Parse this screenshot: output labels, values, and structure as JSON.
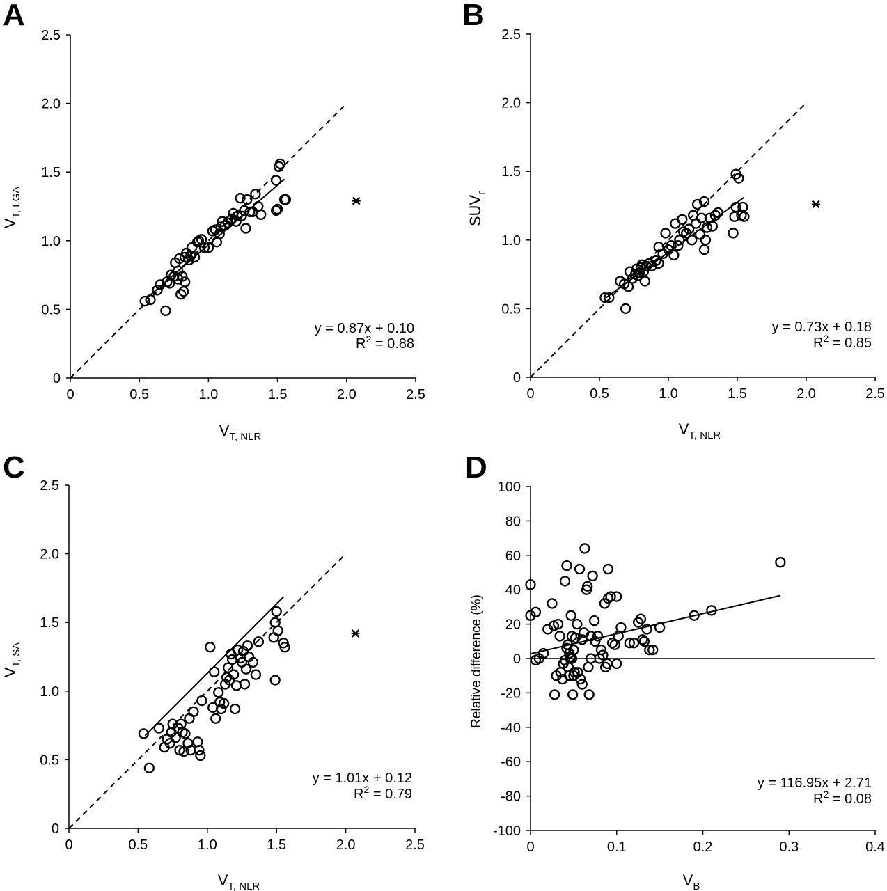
{
  "chart_data": [
    {
      "id": "A",
      "type": "scatter",
      "panel_label": "A",
      "xlabel": {
        "main": "V",
        "sub": "T, NLR"
      },
      "ylabel": {
        "main": "V",
        "sub": "T, LGA"
      },
      "xlim": [
        0,
        2.5
      ],
      "ylim": [
        0,
        2.5
      ],
      "xticks": [
        "0",
        "0.5",
        "1.0",
        "1.5",
        "2.0",
        "2.5"
      ],
      "yticks": [
        "0",
        "0.5",
        "1.0",
        "1.5",
        "2.0",
        "2.5"
      ],
      "xtick_values": [
        0,
        0.5,
        1.0,
        1.5,
        2.0,
        2.5
      ],
      "ytick_values": [
        0,
        0.5,
        1.0,
        1.5,
        2.0,
        2.5
      ],
      "identity_line": {
        "from": [
          0,
          0
        ],
        "to": [
          2.0,
          2.0
        ],
        "style": "dashed"
      },
      "fit": {
        "slope": 0.87,
        "intercept": 0.1,
        "x_range": [
          0.55,
          1.55
        ],
        "eq_text": "y = 0.87x + 0.10",
        "r2_value": "= 0.88"
      },
      "outlier": {
        "x": 2.07,
        "y": 1.29
      },
      "points": [
        [
          0.54,
          0.56
        ],
        [
          0.58,
          0.57
        ],
        [
          0.63,
          0.64
        ],
        [
          0.65,
          0.68
        ],
        [
          0.69,
          0.49
        ],
        [
          0.7,
          0.7
        ],
        [
          0.72,
          0.69
        ],
        [
          0.73,
          0.75
        ],
        [
          0.75,
          0.74
        ],
        [
          0.76,
          0.84
        ],
        [
          0.78,
          0.72
        ],
        [
          0.78,
          0.78
        ],
        [
          0.79,
          0.87
        ],
        [
          0.8,
          0.61
        ],
        [
          0.81,
          0.74
        ],
        [
          0.82,
          0.63
        ],
        [
          0.83,
          0.7
        ],
        [
          0.83,
          0.88
        ],
        [
          0.84,
          0.91
        ],
        [
          0.86,
          0.86
        ],
        [
          0.87,
          0.89
        ],
        [
          0.88,
          0.95
        ],
        [
          0.9,
          0.88
        ],
        [
          0.92,
          0.99
        ],
        [
          0.93,
          1.0
        ],
        [
          0.95,
          1.01
        ],
        [
          0.97,
          0.95
        ],
        [
          1.0,
          0.95
        ],
        [
          1.03,
          1.07
        ],
        [
          1.05,
          1.08
        ],
        [
          1.06,
          0.99
        ],
        [
          1.08,
          1.05
        ],
        [
          1.09,
          1.1
        ],
        [
          1.1,
          1.14
        ],
        [
          1.12,
          1.11
        ],
        [
          1.14,
          1.13
        ],
        [
          1.16,
          1.15
        ],
        [
          1.17,
          1.16
        ],
        [
          1.18,
          1.2
        ],
        [
          1.2,
          1.14
        ],
        [
          1.21,
          1.18
        ],
        [
          1.23,
          1.31
        ],
        [
          1.24,
          1.18
        ],
        [
          1.26,
          1.22
        ],
        [
          1.27,
          1.09
        ],
        [
          1.28,
          1.3
        ],
        [
          1.3,
          1.21
        ],
        [
          1.32,
          1.21
        ],
        [
          1.34,
          1.34
        ],
        [
          1.36,
          1.25
        ],
        [
          1.38,
          1.19
        ],
        [
          1.49,
          1.22
        ],
        [
          1.5,
          1.23
        ],
        [
          1.49,
          1.44
        ],
        [
          1.51,
          1.54
        ],
        [
          1.52,
          1.56
        ],
        [
          1.55,
          1.3
        ],
        [
          1.56,
          1.3
        ]
      ]
    },
    {
      "id": "B",
      "type": "scatter",
      "panel_label": "B",
      "xlabel": {
        "main": "V",
        "sub": "T, NLR"
      },
      "ylabel": {
        "main": "SUV",
        "sub": "r"
      },
      "xlim": [
        0,
        2.5
      ],
      "ylim": [
        0,
        2.5
      ],
      "xticks": [
        "0",
        "0.5",
        "1.0",
        "1.5",
        "2.0",
        "2.5"
      ],
      "yticks": [
        "0",
        "0.5",
        "1.0",
        "1.5",
        "2.0",
        "2.5"
      ],
      "xtick_values": [
        0,
        0.5,
        1.0,
        1.5,
        2.0,
        2.5
      ],
      "ytick_values": [
        0,
        0.5,
        1.0,
        1.5,
        2.0,
        2.5
      ],
      "identity_line": {
        "from": [
          0,
          0
        ],
        "to": [
          2.0,
          2.0
        ],
        "style": "dashed"
      },
      "fit": {
        "slope": 0.73,
        "intercept": 0.18,
        "x_range": [
          0.55,
          1.55
        ],
        "eq_text": "y = 0.73x + 0.18",
        "r2_value": "= 0.85"
      },
      "outlier": {
        "x": 2.07,
        "y": 1.26
      },
      "points": [
        [
          0.54,
          0.58
        ],
        [
          0.57,
          0.58
        ],
        [
          0.65,
          0.7
        ],
        [
          0.68,
          0.68
        ],
        [
          0.69,
          0.5
        ],
        [
          0.71,
          0.66
        ],
        [
          0.72,
          0.77
        ],
        [
          0.74,
          0.72
        ],
        [
          0.76,
          0.75
        ],
        [
          0.77,
          0.79
        ],
        [
          0.78,
          0.74
        ],
        [
          0.79,
          0.76
        ],
        [
          0.8,
          0.8
        ],
        [
          0.81,
          0.82
        ],
        [
          0.82,
          0.77
        ],
        [
          0.83,
          0.7
        ],
        [
          0.84,
          0.81
        ],
        [
          0.86,
          0.83
        ],
        [
          0.88,
          0.81
        ],
        [
          0.91,
          0.85
        ],
        [
          0.93,
          0.95
        ],
        [
          0.96,
          0.9
        ],
        [
          0.98,
          1.05
        ],
        [
          1.0,
          0.93
        ],
        [
          1.02,
          0.96
        ],
        [
          1.04,
          0.89
        ],
        [
          1.05,
          1.12
        ],
        [
          1.07,
          0.96
        ],
        [
          1.08,
          1.0
        ],
        [
          1.1,
          1.15
        ],
        [
          1.11,
          1.06
        ],
        [
          1.13,
          1.05
        ],
        [
          1.15,
          1.08
        ],
        [
          1.17,
          1.0
        ],
        [
          1.18,
          1.18
        ],
        [
          1.2,
          1.12
        ],
        [
          1.21,
          1.26
        ],
        [
          1.23,
          1.04
        ],
        [
          1.24,
          1.16
        ],
        [
          1.26,
          1.28
        ],
        [
          1.27,
          1.0
        ],
        [
          1.28,
          1.09
        ],
        [
          1.3,
          1.16
        ],
        [
          1.32,
          1.1
        ],
        [
          1.34,
          1.18
        ],
        [
          1.36,
          1.2
        ],
        [
          1.47,
          1.05
        ],
        [
          1.48,
          1.17
        ],
        [
          1.49,
          1.24
        ],
        [
          1.49,
          1.48
        ],
        [
          1.51,
          1.45
        ],
        [
          1.53,
          1.18
        ],
        [
          1.54,
          1.24
        ],
        [
          1.55,
          1.17
        ],
        [
          1.26,
          0.93
        ],
        [
          0.93,
          0.83
        ]
      ]
    },
    {
      "id": "C",
      "type": "scatter",
      "panel_label": "C",
      "xlabel": {
        "main": "V",
        "sub": "T, NLR"
      },
      "ylabel": {
        "main": "V",
        "sub": "T, SA"
      },
      "xlim": [
        0,
        2.5
      ],
      "ylim": [
        0,
        2.5
      ],
      "xticks": [
        "0",
        "0.5",
        "1.0",
        "1.5",
        "2.0",
        "2.5"
      ],
      "yticks": [
        "0",
        "0.5",
        "1.0",
        "1.5",
        "2.0",
        "2.5"
      ],
      "xtick_values": [
        0,
        0.5,
        1.0,
        1.5,
        2.0,
        2.5
      ],
      "ytick_values": [
        0,
        0.5,
        1.0,
        1.5,
        2.0,
        2.5
      ],
      "identity_line": {
        "from": [
          0,
          0
        ],
        "to": [
          2.0,
          2.0
        ],
        "style": "dashed"
      },
      "fit": {
        "slope": 1.01,
        "intercept": 0.12,
        "x_range": [
          0.55,
          1.55
        ],
        "eq_text": "y = 1.01x + 0.12",
        "r2_value": "= 0.79"
      },
      "outlier": {
        "x": 2.07,
        "y": 1.42
      },
      "points": [
        [
          0.54,
          0.69
        ],
        [
          0.58,
          0.44
        ],
        [
          0.65,
          0.73
        ],
        [
          0.69,
          0.59
        ],
        [
          0.71,
          0.65
        ],
        [
          0.73,
          0.62
        ],
        [
          0.74,
          0.7
        ],
        [
          0.75,
          0.76
        ],
        [
          0.77,
          0.66
        ],
        [
          0.79,
          0.73
        ],
        [
          0.8,
          0.57
        ],
        [
          0.81,
          0.76
        ],
        [
          0.82,
          0.7
        ],
        [
          0.83,
          0.56
        ],
        [
          0.84,
          0.69
        ],
        [
          0.86,
          0.62
        ],
        [
          0.87,
          0.8
        ],
        [
          0.88,
          0.57
        ],
        [
          0.9,
          0.85
        ],
        [
          0.93,
          0.63
        ],
        [
          0.94,
          0.57
        ],
        [
          0.95,
          0.53
        ],
        [
          0.96,
          0.93
        ],
        [
          1.02,
          1.32
        ],
        [
          1.04,
          0.88
        ],
        [
          1.05,
          1.14
        ],
        [
          1.06,
          0.8
        ],
        [
          1.08,
          0.99
        ],
        [
          1.09,
          0.92
        ],
        [
          1.1,
          0.87
        ],
        [
          1.12,
          0.91
        ],
        [
          1.13,
          1.05
        ],
        [
          1.14,
          1.1
        ],
        [
          1.15,
          1.17
        ],
        [
          1.16,
          1.08
        ],
        [
          1.17,
          1.27
        ],
        [
          1.18,
          1.23
        ],
        [
          1.19,
          1.12
        ],
        [
          1.2,
          0.87
        ],
        [
          1.21,
          1.04
        ],
        [
          1.22,
          1.3
        ],
        [
          1.24,
          1.24
        ],
        [
          1.25,
          1.21
        ],
        [
          1.26,
          1.29
        ],
        [
          1.27,
          1.05
        ],
        [
          1.28,
          1.16
        ],
        [
          1.29,
          1.33
        ],
        [
          1.3,
          1.25
        ],
        [
          1.33,
          1.21
        ],
        [
          1.35,
          1.12
        ],
        [
          1.37,
          1.36
        ],
        [
          1.48,
          1.39
        ],
        [
          1.49,
          1.5
        ],
        [
          1.5,
          1.58
        ],
        [
          1.51,
          1.44
        ],
        [
          1.55,
          1.35
        ],
        [
          1.56,
          1.32
        ],
        [
          1.49,
          1.08
        ]
      ]
    },
    {
      "id": "D",
      "type": "scatter",
      "panel_label": "D",
      "xlabel": {
        "main": "V",
        "sub": "B"
      },
      "ylabel": {
        "main": "Relative difference (%)",
        "sub": ""
      },
      "xlim": [
        0,
        0.4
      ],
      "ylim": [
        -100,
        100
      ],
      "xticks": [
        "0",
        "0.1",
        "0.2",
        "0.3",
        "0.4"
      ],
      "yticks": [
        "-100",
        "-80",
        "-60",
        "-40",
        "-20",
        "0",
        "20",
        "40",
        "60",
        "80",
        "100"
      ],
      "xtick_values": [
        0,
        0.1,
        0.2,
        0.3,
        0.4
      ],
      "ytick_values": [
        -100,
        -80,
        -60,
        -40,
        -20,
        0,
        20,
        40,
        60,
        80,
        100
      ],
      "zero_line": true,
      "fit": {
        "slope": 116.95,
        "intercept": 2.71,
        "x_range": [
          0,
          0.29
        ],
        "eq_text": "y = 116.95x + 2.71",
        "r2_value": "= 0.08"
      },
      "points": [
        [
          0.0,
          43
        ],
        [
          0.0,
          25
        ],
        [
          0.006,
          27
        ],
        [
          0.006,
          -1
        ],
        [
          0.01,
          0
        ],
        [
          0.015,
          3
        ],
        [
          0.02,
          17
        ],
        [
          0.025,
          32
        ],
        [
          0.027,
          19
        ],
        [
          0.028,
          -21
        ],
        [
          0.03,
          -10
        ],
        [
          0.032,
          20
        ],
        [
          0.034,
          13
        ],
        [
          0.035,
          -8
        ],
        [
          0.037,
          -12
        ],
        [
          0.038,
          -3
        ],
        [
          0.04,
          -1
        ],
        [
          0.04,
          45
        ],
        [
          0.042,
          54
        ],
        [
          0.043,
          8
        ],
        [
          0.044,
          -5
        ],
        [
          0.045,
          3
        ],
        [
          0.045,
          -10
        ],
        [
          0.046,
          0
        ],
        [
          0.047,
          25
        ],
        [
          0.048,
          13
        ],
        [
          0.049,
          -21
        ],
        [
          0.05,
          5
        ],
        [
          0.05,
          -10
        ],
        [
          0.052,
          12
        ],
        [
          0.054,
          20
        ],
        [
          0.055,
          -8
        ],
        [
          0.057,
          52
        ],
        [
          0.058,
          -12
        ],
        [
          0.06,
          -15
        ],
        [
          0.06,
          11
        ],
        [
          0.062,
          15
        ],
        [
          0.063,
          64
        ],
        [
          0.065,
          40
        ],
        [
          0.066,
          42
        ],
        [
          0.067,
          -5
        ],
        [
          0.068,
          -21
        ],
        [
          0.07,
          0
        ],
        [
          0.07,
          13
        ],
        [
          0.072,
          48
        ],
        [
          0.074,
          22
        ],
        [
          0.075,
          10
        ],
        [
          0.078,
          13
        ],
        [
          0.08,
          0
        ],
        [
          0.082,
          5
        ],
        [
          0.084,
          2
        ],
        [
          0.086,
          32
        ],
        [
          0.087,
          -5
        ],
        [
          0.089,
          -3
        ],
        [
          0.09,
          52
        ],
        [
          0.09,
          35
        ],
        [
          0.093,
          36
        ],
        [
          0.095,
          9
        ],
        [
          0.098,
          8
        ],
        [
          0.1,
          -3
        ],
        [
          0.1,
          36
        ],
        [
          0.102,
          13
        ],
        [
          0.105,
          18
        ],
        [
          0.115,
          9
        ],
        [
          0.12,
          9
        ],
        [
          0.125,
          21
        ],
        [
          0.128,
          23
        ],
        [
          0.13,
          11
        ],
        [
          0.132,
          10
        ],
        [
          0.135,
          17
        ],
        [
          0.138,
          5
        ],
        [
          0.142,
          5
        ],
        [
          0.15,
          18
        ],
        [
          0.19,
          25
        ],
        [
          0.21,
          28
        ],
        [
          0.29,
          56
        ],
        [
          0.042,
          6
        ],
        [
          0.046,
          1
        ],
        [
          0.048,
          0
        ],
        [
          0.051,
          -8
        ]
      ]
    }
  ]
}
